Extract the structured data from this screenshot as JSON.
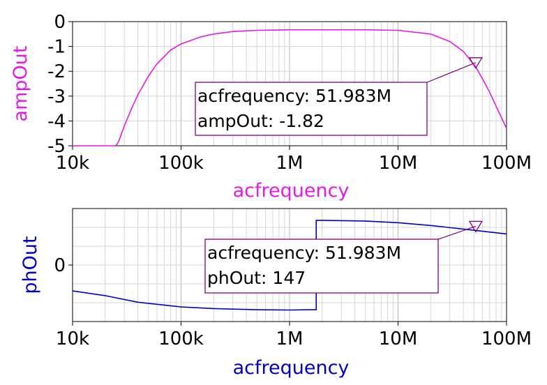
{
  "chart_data": [
    {
      "type": "line",
      "xlabel": "acfrequency",
      "ylabel": "ampOut",
      "x_scale": "log",
      "xlim": [
        10000,
        100000000
      ],
      "ylim": [
        -5,
        0
      ],
      "x_ticks": [
        10000,
        100000,
        1000000,
        10000000,
        100000000
      ],
      "x_tick_labels": [
        "10k",
        "100k",
        "1M",
        "10M",
        "100M"
      ],
      "y_ticks": [
        0,
        -1,
        -2,
        -3,
        -4,
        -5
      ],
      "y_tick_labels": [
        "0",
        "-1",
        "-2",
        "-3",
        "-4",
        "-5"
      ],
      "grid": true,
      "series": [
        {
          "color": "#e619e6",
          "x": [
            10000,
            25000,
            26500,
            30000,
            35000,
            40000,
            50000,
            60000,
            80000,
            100000,
            150000,
            200000,
            300000,
            500000,
            1000000,
            2000000,
            5000000,
            10000000,
            20000000,
            30000000,
            40000000,
            51983000,
            60000000,
            70000000,
            80000000,
            100000000
          ],
          "y": [
            -5,
            -5,
            -4.85,
            -4.2,
            -3.5,
            -2.95,
            -2.2,
            -1.7,
            -1.15,
            -0.9,
            -0.62,
            -0.5,
            -0.4,
            -0.35,
            -0.33,
            -0.33,
            -0.33,
            -0.35,
            -0.5,
            -0.8,
            -1.2,
            -1.82,
            -2.3,
            -2.85,
            -3.4,
            -4.3
          ]
        }
      ],
      "cursor": {
        "x": 51983000,
        "y": -1.82,
        "x_text": "acfrequency: 51.983M",
        "y_text": "ampOut: -1.82"
      }
    },
    {
      "type": "line",
      "xlabel": "acfrequency",
      "ylabel": "phOut",
      "x_scale": "log",
      "xlim": [
        10000,
        100000000
      ],
      "ylim": [
        -240,
        240
      ],
      "x_ticks": [
        10000,
        100000,
        1000000,
        10000000,
        100000000
      ],
      "x_tick_labels": [
        "10k",
        "100k",
        "1M",
        "10M",
        "100M"
      ],
      "y_ticks": [
        0
      ],
      "y_tick_labels": [
        "0"
      ],
      "grid": true,
      "series": [
        {
          "color": "#0000c8",
          "x": [
            10000,
            20000,
            40000,
            100000,
            200000,
            500000,
            1000000,
            1500000,
            1760000,
            1760000,
            2000000,
            5000000,
            10000000,
            20000000,
            51983000,
            100000000
          ],
          "y": [
            -110,
            -130,
            -158,
            -178,
            -185,
            -190,
            -191,
            -190,
            -190,
            190,
            190,
            187,
            180,
            168,
            147,
            132
          ]
        }
      ],
      "cursor": {
        "x": 51983000,
        "y": 147,
        "x_text": "acfrequency: 51.983M",
        "y_text": "phOut: 147"
      }
    }
  ]
}
